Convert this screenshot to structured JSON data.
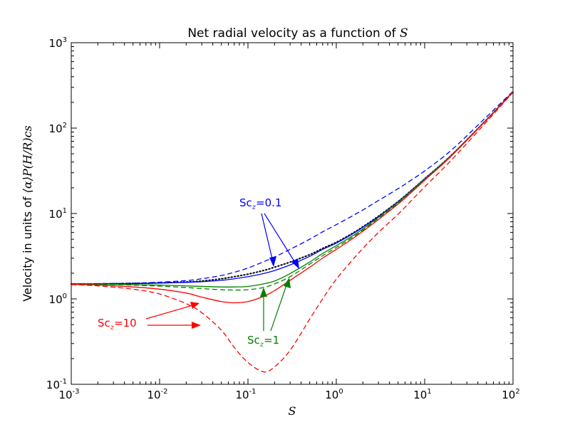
{
  "chart_data": {
    "type": "line",
    "title": "Net radial velocity as a function of ",
    "title_math": "S",
    "xlabel": "S",
    "ylabel": "Velocity in units of ",
    "ylabel_math": "⟨α⟩P(H/R)cs",
    "xscale": "log",
    "yscale": "log",
    "xlim": [
      0.001,
      100
    ],
    "ylim": [
      0.1,
      1000
    ],
    "x_ticks": [
      {
        "base": "10",
        "exp": "-3"
      },
      {
        "base": "10",
        "exp": "-2"
      },
      {
        "base": "10",
        "exp": "-1"
      },
      {
        "base": "10",
        "exp": "0"
      },
      {
        "base": "10",
        "exp": "1"
      },
      {
        "base": "10",
        "exp": "2"
      }
    ],
    "y_ticks": [
      {
        "base": "10",
        "exp": "-1"
      },
      {
        "base": "10",
        "exp": "0"
      },
      {
        "base": "10",
        "exp": "1"
      },
      {
        "base": "10",
        "exp": "2"
      },
      {
        "base": "10",
        "exp": "3"
      }
    ],
    "x": [
      0.001,
      0.002,
      0.005,
      0.01,
      0.02,
      0.03,
      0.05,
      0.07,
      0.1,
      0.15,
      0.2,
      0.3,
      0.5,
      0.7,
      1,
      1.5,
      2,
      3,
      5,
      7,
      10,
      20,
      50,
      100
    ],
    "series": [
      {
        "name": "black dotted",
        "color": "#000000",
        "style": "dotted",
        "values": [
          1.5,
          1.5,
          1.52,
          1.54,
          1.58,
          1.62,
          1.72,
          1.82,
          1.95,
          2.15,
          2.35,
          2.7,
          3.3,
          3.9,
          4.6,
          5.8,
          7.0,
          9.3,
          13.8,
          18.5,
          25.5,
          48,
          125,
          265
        ]
      },
      {
        "name": "Sc_z=0.1 solid",
        "color": "#0000ff",
        "style": "solid",
        "values": [
          1.5,
          1.5,
          1.51,
          1.53,
          1.56,
          1.59,
          1.65,
          1.72,
          1.82,
          1.98,
          2.15,
          2.5,
          3.15,
          3.8,
          4.5,
          5.7,
          6.9,
          9.2,
          13.7,
          18.4,
          25.5,
          48,
          125,
          265
        ]
      },
      {
        "name": "Sc_z=0.1 dashed",
        "color": "#0000ff",
        "style": "dashed",
        "values": [
          1.5,
          1.51,
          1.53,
          1.57,
          1.64,
          1.72,
          1.88,
          2.05,
          2.3,
          2.72,
          3.1,
          3.8,
          5.0,
          6.1,
          7.4,
          9.3,
          11.0,
          14.2,
          19.5,
          24.5,
          31.5,
          55,
          135,
          270
        ]
      },
      {
        "name": "Sc_z=1 solid",
        "color": "#008000",
        "style": "solid",
        "values": [
          1.5,
          1.49,
          1.47,
          1.45,
          1.42,
          1.4,
          1.38,
          1.38,
          1.4,
          1.5,
          1.62,
          1.98,
          2.7,
          3.4,
          4.2,
          5.4,
          6.6,
          9.0,
          13.5,
          18.2,
          25.2,
          48,
          125,
          265
        ]
      },
      {
        "name": "Sc_z=1 dashed",
        "color": "#008000",
        "style": "dashed",
        "values": [
          1.49,
          1.48,
          1.45,
          1.41,
          1.36,
          1.32,
          1.28,
          1.27,
          1.28,
          1.36,
          1.5,
          1.82,
          2.55,
          3.2,
          4.0,
          5.2,
          6.4,
          8.8,
          13.2,
          17.9,
          25.0,
          47.5,
          124,
          265
        ]
      },
      {
        "name": "Sc_z=10 solid",
        "color": "#ff0000",
        "style": "solid",
        "values": [
          1.48,
          1.45,
          1.38,
          1.3,
          1.17,
          1.05,
          0.93,
          0.9,
          0.93,
          1.07,
          1.25,
          1.65,
          2.35,
          3.0,
          3.8,
          5.0,
          6.2,
          8.5,
          12.9,
          17.5,
          24.5,
          47,
          124,
          265
        ]
      },
      {
        "name": "Sc_z=10 dashed",
        "color": "#ff0000",
        "style": "dashed",
        "values": [
          1.47,
          1.42,
          1.3,
          1.14,
          0.88,
          0.69,
          0.43,
          0.27,
          0.18,
          0.14,
          0.16,
          0.25,
          0.58,
          1.0,
          1.7,
          2.8,
          3.9,
          6.0,
          9.8,
          14.0,
          20.5,
          42,
          118,
          262
        ]
      }
    ],
    "annotations": [
      {
        "label": "Sc",
        "sub": "z",
        "value": "=0.1",
        "color": "#0000ff"
      },
      {
        "label": "Sc",
        "sub": "z",
        "value": "=1",
        "color": "#008000"
      },
      {
        "label": "Sc",
        "sub": "z",
        "value": "=10",
        "color": "#ff0000"
      }
    ]
  }
}
